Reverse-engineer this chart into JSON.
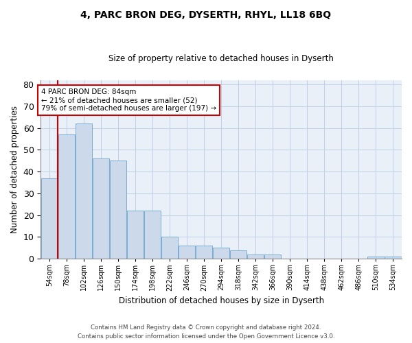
{
  "title": "4, PARC BRON DEG, DYSERTH, RHYL, LL18 6BQ",
  "subtitle": "Size of property relative to detached houses in Dyserth",
  "xlabel": "Distribution of detached houses by size in Dyserth",
  "ylabel": "Number of detached properties",
  "bins": [
    54,
    78,
    102,
    126,
    150,
    174,
    198,
    222,
    246,
    270,
    294,
    318,
    342,
    366,
    390,
    414,
    438,
    462,
    486,
    510,
    534
  ],
  "counts": [
    37,
    57,
    62,
    46,
    45,
    22,
    22,
    10,
    6,
    6,
    5,
    4,
    2,
    2,
    0,
    0,
    0,
    0,
    0,
    1,
    1
  ],
  "bar_color": "#ccd9ea",
  "bar_edge_color": "#7aadd4",
  "vline_x": 78,
  "vline_color": "#cc0000",
  "annotation_text": "4 PARC BRON DEG: 84sqm\n← 21% of detached houses are smaller (52)\n79% of semi-detached houses are larger (197) →",
  "annotation_box_color": "#cc0000",
  "ylim": [
    0,
    82
  ],
  "yticks": [
    0,
    10,
    20,
    30,
    40,
    50,
    60,
    70,
    80
  ],
  "grid_color": "#c0d0e8",
  "bg_color": "#eaf0f8",
  "footer_text": "Contains HM Land Registry data © Crown copyright and database right 2024.\nContains public sector information licensed under the Open Government Licence v3.0.",
  "tick_labels": [
    "54sqm",
    "78sqm",
    "102sqm",
    "126sqm",
    "150sqm",
    "174sqm",
    "198sqm",
    "222sqm",
    "246sqm",
    "270sqm",
    "294sqm",
    "318sqm",
    "342sqm",
    "366sqm",
    "390sqm",
    "414sqm",
    "438sqm",
    "462sqm",
    "486sqm",
    "510sqm",
    "534sqm"
  ],
  "figwidth": 6.0,
  "figheight": 5.0,
  "dpi": 100
}
